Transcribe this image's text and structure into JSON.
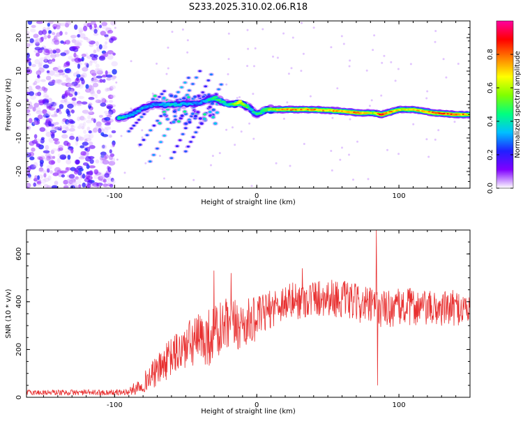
{
  "chart_data": [
    {
      "type": "heatmap",
      "title": "S233.2025.310.02.06.R18",
      "xlabel": "Height of straight line (km)",
      "ylabel": "Frequency (Hz)",
      "xlim": [
        -162,
        150
      ],
      "ylim": [
        -25,
        25
      ],
      "xticks": [
        -100,
        0,
        100
      ],
      "yticks": [
        -20,
        -10,
        0,
        10,
        20
      ],
      "colorbar": {
        "label": "Normalized spectral amplitude",
        "range": [
          0,
          1
        ],
        "ticks": [
          0.0,
          0.2,
          0.4,
          0.6,
          0.8
        ],
        "tick_labels": [
          "0.0",
          "0.2",
          "0.4",
          "0.6",
          "0.8"
        ],
        "colors": [
          "#ffffff",
          "#8000ff",
          "#2020ff",
          "#00c0ff",
          "#00ff80",
          "#80ff00",
          "#ffff00",
          "#ff8000",
          "#ff0000",
          "#ff00a0"
        ]
      },
      "main_track": [
        {
          "x": -97,
          "f": -4,
          "a": 0.45
        },
        {
          "x": -90,
          "f": -3.5,
          "a": 0.35
        },
        {
          "x": -80,
          "f": -1,
          "a": 0.35
        },
        {
          "x": -72,
          "f": 0,
          "a": 0.3
        },
        {
          "x": -60,
          "f": 0,
          "a": 0.4
        },
        {
          "x": -40,
          "f": 0.5,
          "a": 0.3
        },
        {
          "x": -30,
          "f": 2,
          "a": 0.5
        },
        {
          "x": -20,
          "f": 0,
          "a": 0.4
        },
        {
          "x": -12,
          "f": 0.5,
          "a": 0.75
        },
        {
          "x": -5,
          "f": -1,
          "a": 0.4
        },
        {
          "x": 0,
          "f": -3,
          "a": 0.45
        },
        {
          "x": 6,
          "f": -1.5,
          "a": 0.55
        },
        {
          "x": 20,
          "f": -1.5,
          "a": 0.75
        },
        {
          "x": 40,
          "f": -1.5,
          "a": 0.75
        },
        {
          "x": 60,
          "f": -2,
          "a": 0.75
        },
        {
          "x": 72,
          "f": -2.5,
          "a": 0.85
        },
        {
          "x": 82,
          "f": -2.5,
          "a": 0.6
        },
        {
          "x": 88,
          "f": -3,
          "a": 0.9
        },
        {
          "x": 100,
          "f": -1.5,
          "a": 0.65
        },
        {
          "x": 110,
          "f": -1.5,
          "a": 0.7
        },
        {
          "x": 125,
          "f": -2.5,
          "a": 0.8
        },
        {
          "x": 140,
          "f": -3,
          "a": 0.85
        },
        {
          "x": 150,
          "f": -3,
          "a": 0.7
        }
      ],
      "diagonal_streaks": [
        {
          "x0": -75,
          "f0": -17,
          "x1": -40,
          "f1": 10,
          "a": 0.3
        },
        {
          "x0": -82,
          "f0": -12,
          "x1": -48,
          "f1": 8,
          "a": 0.3
        },
        {
          "x0": -60,
          "f0": -16,
          "x1": -32,
          "f1": 9,
          "a": 0.25
        },
        {
          "x0": -50,
          "f0": -14,
          "x1": -25,
          "f1": 6,
          "a": 0.25
        },
        {
          "x0": -90,
          "f0": -8,
          "x1": -65,
          "f1": 4,
          "a": 0.25
        }
      ]
    },
    {
      "type": "line",
      "xlabel": "Height of straight line (km)",
      "ylabel": "SNR (10 * v/v)",
      "xlim": [
        -162,
        150
      ],
      "ylim": [
        0,
        700
      ],
      "xticks": [
        -100,
        0,
        100
      ],
      "yticks": [
        0,
        200,
        400,
        600
      ],
      "series": [
        {
          "name": "SNR",
          "color": "#e83030",
          "envelope_x": [
            -162,
            -140,
            -120,
            -100,
            -90,
            -85,
            -80,
            -75,
            -70,
            -65,
            -60,
            -55,
            -50,
            -45,
            -40,
            -35,
            -30,
            -25,
            -20,
            -15,
            -10,
            -5,
            0,
            5,
            10,
            15,
            20,
            30,
            40,
            50,
            60,
            70,
            80,
            90,
            100,
            110,
            120,
            130,
            140,
            150
          ],
          "envelope_mean": [
            20,
            20,
            20,
            20,
            22,
            40,
            60,
            85,
            110,
            140,
            170,
            190,
            210,
            230,
            240,
            250,
            260,
            280,
            295,
            300,
            305,
            315,
            330,
            350,
            370,
            390,
            400,
            405,
            415,
            420,
            410,
            395,
            380,
            370,
            375,
            380,
            370,
            370,
            375,
            370
          ],
          "envelope_spread": [
            12,
            12,
            12,
            12,
            15,
            30,
            40,
            55,
            65,
            75,
            85,
            95,
            100,
            110,
            115,
            120,
            130,
            130,
            120,
            110,
            110,
            100,
            90,
            85,
            80,
            80,
            80,
            80,
            80,
            80,
            80,
            80,
            80,
            80,
            80,
            80,
            75,
            75,
            75,
            70
          ],
          "spikes": [
            {
              "x": 84,
              "y": 700
            },
            {
              "x": 85,
              "y": 50
            },
            {
              "x": -18,
              "y": 520
            },
            {
              "x": -30,
              "y": 530
            },
            {
              "x": 32,
              "y": 540
            }
          ]
        }
      ]
    }
  ]
}
